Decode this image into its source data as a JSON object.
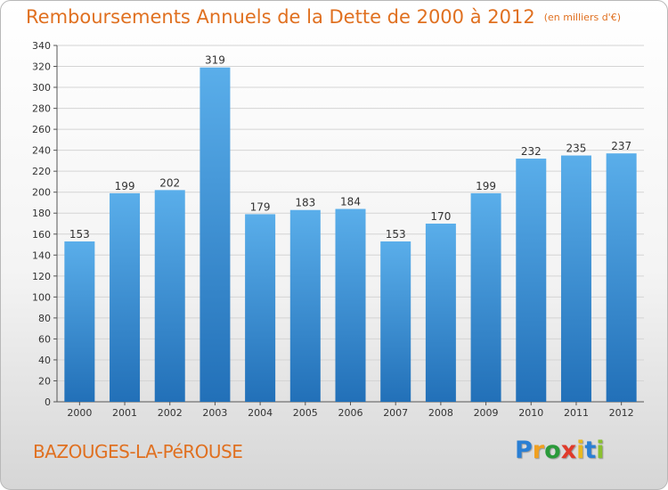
{
  "title": "Remboursements Annuels de la Dette de 2000 à 2012",
  "unit_note": "(en milliers d'€)",
  "commune": "BAZOUGES-LA-PéROUSE",
  "logo": {
    "letters": [
      "P",
      "r",
      "o",
      "x",
      "i",
      "t",
      "i"
    ],
    "colors": [
      "#2a7fd4",
      "#f0a020",
      "#2a9a3a",
      "#e03a2a",
      "#e8b820",
      "#2a7fd4",
      "#8ac030"
    ]
  },
  "chart_data": {
    "type": "bar",
    "categories": [
      "2000",
      "2001",
      "2002",
      "2003",
      "2004",
      "2005",
      "2006",
      "2007",
      "2008",
      "2009",
      "2010",
      "2011",
      "2012"
    ],
    "values": [
      153,
      199,
      202,
      319,
      179,
      183,
      184,
      153,
      170,
      199,
      232,
      235,
      237
    ],
    "ylim": [
      0,
      340
    ],
    "ytick_step": 20,
    "grid": true,
    "bar_color": "#3a8fd8"
  }
}
